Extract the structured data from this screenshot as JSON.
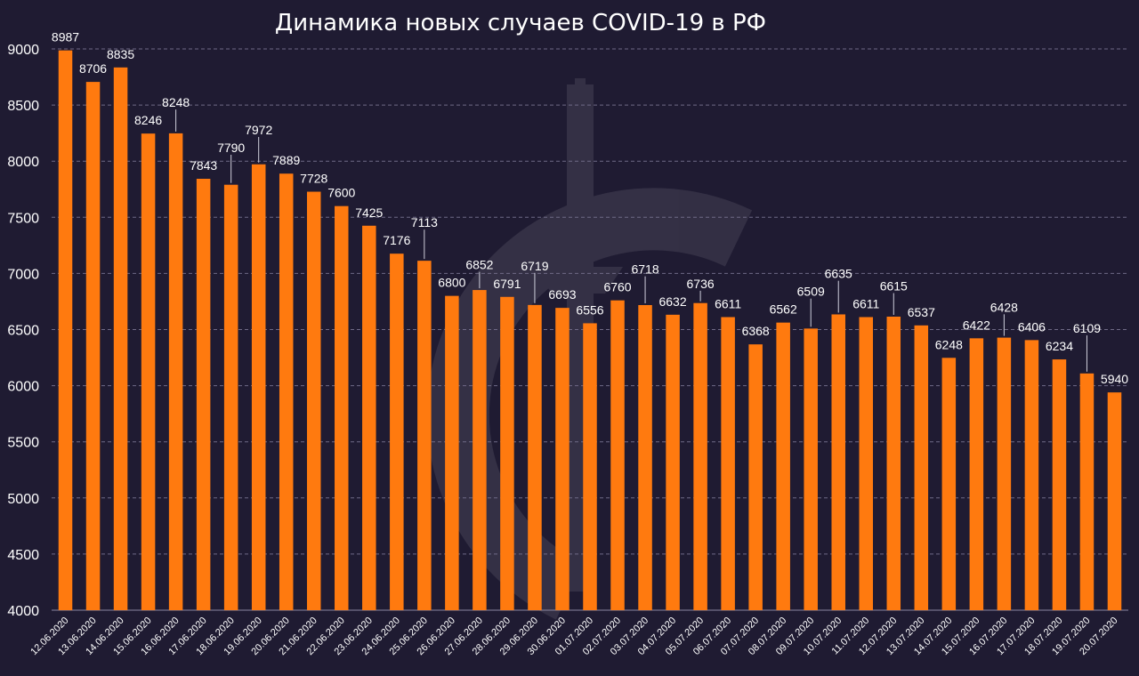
{
  "chart_data": {
    "type": "bar",
    "title": "Динамика новых случаев COVID-19 в РФ",
    "xlabel": "",
    "ylabel": "",
    "ylim": [
      4000,
      9000
    ],
    "yticks": [
      "4000",
      "4500",
      "5000",
      "5500",
      "6000",
      "6500",
      "7000",
      "7500",
      "8000",
      "8500",
      "9000"
    ],
    "grid": true,
    "colors": {
      "bar": "#ff7a0f",
      "background": "#1f1b32",
      "grid": "#6f6a86"
    },
    "categories": [
      "12.06.2020",
      "13.06.2020",
      "14.06.2020",
      "15.06.2020",
      "16.06.2020",
      "17.06.2020",
      "18.06.2020",
      "19.06.2020",
      "20.06.2020",
      "21.06.2020",
      "22.06.2020",
      "23.06.2020",
      "24.06.2020",
      "25.06.2020",
      "26.06.2020",
      "27.06.2020",
      "28.06.2020",
      "29.06.2020",
      "30.06.2020",
      "01.07.2020",
      "02.07.2020",
      "03.07.2020",
      "04.07.2020",
      "05.07.2020",
      "06.07.2020",
      "07.07.2020",
      "08.07.2020",
      "09.07.2020",
      "10.07.2020",
      "11.07.2020",
      "12.07.2020",
      "13.07.2020",
      "14.07.2020",
      "15.07.2020",
      "16.07.2020",
      "17.07.2020",
      "18.07.2020",
      "19.07.2020",
      "20.07.2020"
    ],
    "values": [
      8987,
      8706,
      8835,
      8246,
      8248,
      7843,
      7790,
      7972,
      7889,
      7728,
      7600,
      7425,
      7176,
      7113,
      6800,
      6852,
      6791,
      6719,
      6693,
      6556,
      6760,
      6718,
      6632,
      6736,
      6611,
      6368,
      6562,
      6509,
      6635,
      6611,
      6615,
      6537,
      6248,
      6422,
      6428,
      6406,
      6234,
      6109,
      5940
    ],
    "labels": [
      "8987",
      "8706",
      "8835",
      "8246",
      "8248",
      "7843",
      "7790",
      "7972",
      "7889",
      "7728",
      "7600",
      "7425",
      "7176",
      "7113",
      "6800",
      "6852",
      "6791",
      "6719",
      "6693",
      "6556",
      "6760",
      "6718",
      "6632",
      "6736",
      "6611",
      "6368",
      "6562",
      "6509",
      "6635",
      "6611",
      "6615",
      "6537",
      "6248",
      "6422",
      "6428",
      "6406",
      "6234",
      "6109",
      "5940"
    ]
  }
}
